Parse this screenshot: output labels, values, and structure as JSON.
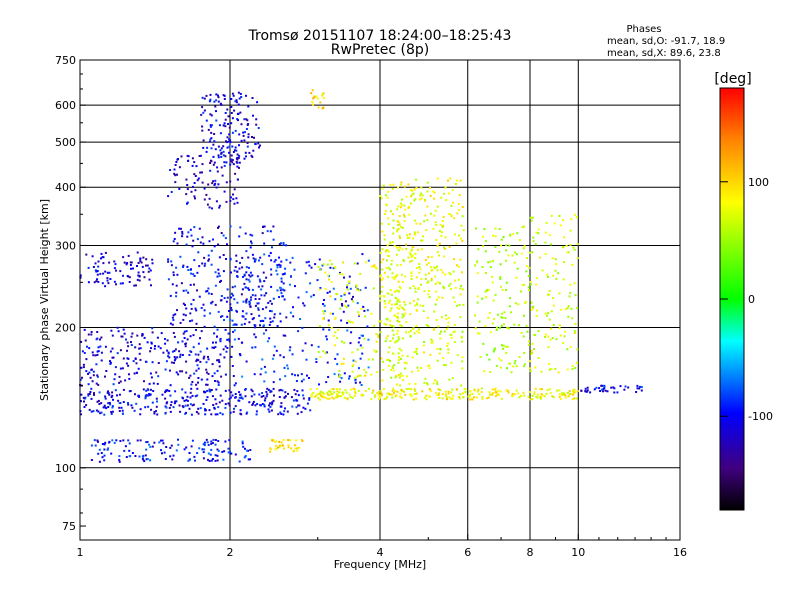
{
  "chart_data": {
    "type": "scatter",
    "title": "Tromsø 20151107 18:24:00–18:25:43",
    "subtitle": "RwPretec (8p)",
    "xlabel": "Frequency [MHz]",
    "ylabel": "Stationary phase Virtual Height [km]",
    "xscale": "log",
    "yscale": "log",
    "xlim": [
      1,
      16
    ],
    "ylim": [
      70,
      750
    ],
    "xticks": [
      1,
      2,
      4,
      6,
      8,
      10,
      16
    ],
    "yticks": [
      75,
      100,
      200,
      300,
      400,
      500,
      600,
      750
    ],
    "vgrid": [
      2,
      4,
      6,
      8,
      10
    ],
    "hgrid": [
      100,
      200,
      300,
      400,
      500,
      600
    ],
    "stats": {
      "heading": "Phases",
      "line_o": "mean, sd,O: -91.7, 18.9",
      "line_x": "mean, sd,X:  89.6, 23.8"
    },
    "colorbar": {
      "label": "[deg]",
      "range": [
        -180,
        180
      ],
      "ticks": [
        100,
        0,
        -100
      ],
      "tick_labels": [
        "100",
        "0",
        "-100"
      ],
      "colors": [
        "#ff0000",
        "#ff8000",
        "#ffff00",
        "#00ff00",
        "#00ffff",
        "#0000ff",
        "#400080",
        "#000000"
      ]
    },
    "clusters": [
      {
        "f": [
          1.0,
          1.4
        ],
        "h": [
          245,
          290
        ],
        "phase": -110,
        "n": 90
      },
      {
        "f": [
          1.0,
          2.0
        ],
        "h": [
          150,
          200
        ],
        "phase": -105,
        "n": 260
      },
      {
        "f": [
          1.0,
          2.9
        ],
        "h": [
          130,
          148
        ],
        "phase": -100,
        "n": 320
      },
      {
        "f": [
          1.05,
          2.2
        ],
        "h": [
          103,
          115
        ],
        "phase": -95,
        "n": 140
      },
      {
        "f": [
          1.5,
          2.1
        ],
        "h": [
          360,
          470
        ],
        "phase": -110,
        "n": 110
      },
      {
        "f": [
          1.75,
          2.3
        ],
        "h": [
          460,
          640
        ],
        "phase": -105,
        "n": 150
      },
      {
        "f": [
          1.5,
          2.6
        ],
        "h": [
          200,
          330
        ],
        "phase": -100,
        "n": 280
      },
      {
        "f": [
          2.0,
          3.8
        ],
        "h": [
          150,
          290
        ],
        "phase": -90,
        "n": 240
      },
      {
        "f": [
          2.4,
          2.8
        ],
        "h": [
          108,
          115
        ],
        "phase": 95,
        "n": 35
      },
      {
        "f": [
          2.9,
          3.1
        ],
        "h": [
          590,
          650
        ],
        "phase": 95,
        "n": 18
      },
      {
        "f": [
          2.9,
          10.0
        ],
        "h": [
          140,
          148
        ],
        "phase": 85,
        "n": 280
      },
      {
        "f": [
          3.0,
          4.5
        ],
        "h": [
          155,
          280
        ],
        "phase": 75,
        "n": 160
      },
      {
        "f": [
          4.0,
          5.9
        ],
        "h": [
          250,
          420
        ],
        "phase": 80,
        "n": 260
      },
      {
        "f": [
          4.0,
          5.9
        ],
        "h": [
          150,
          250
        ],
        "phase": 70,
        "n": 220
      },
      {
        "f": [
          6.2,
          8.0
        ],
        "h": [
          160,
          330
        ],
        "phase": 60,
        "n": 150
      },
      {
        "f": [
          8.0,
          10.0
        ],
        "h": [
          160,
          350
        ],
        "phase": 70,
        "n": 130
      },
      {
        "f": [
          10.0,
          13.5
        ],
        "h": [
          145,
          150
        ],
        "phase": -100,
        "n": 40
      }
    ]
  }
}
